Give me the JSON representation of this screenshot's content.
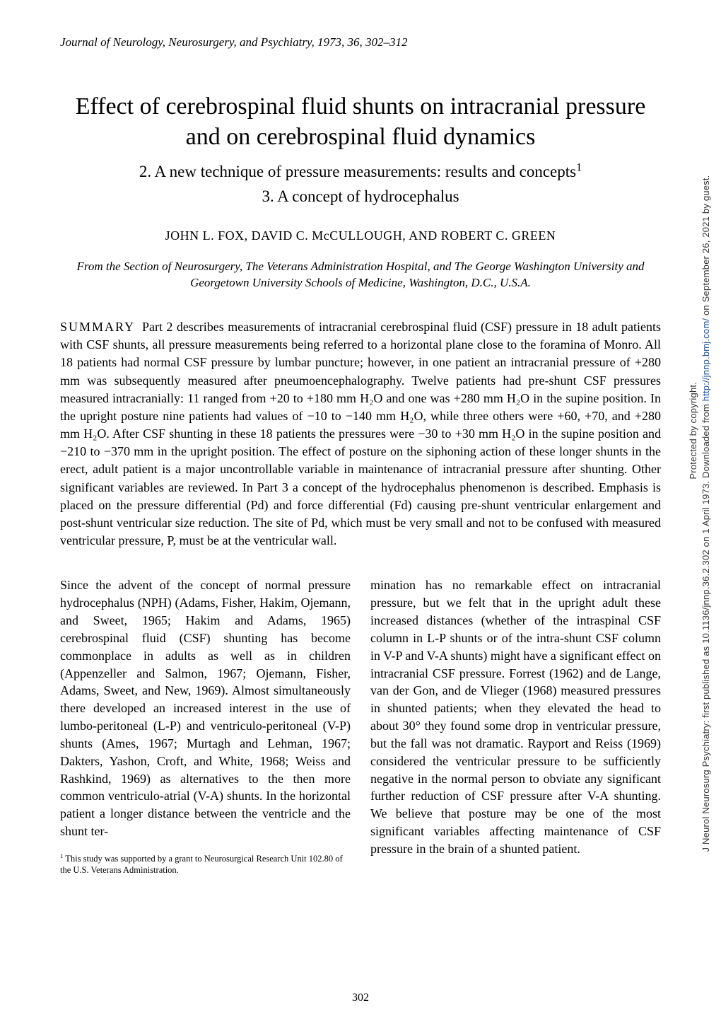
{
  "header": {
    "journal_citation": "Journal of Neurology, Neurosurgery, and Psychiatry, 1973, 36, 302–312"
  },
  "title": {
    "main": "Effect of cerebrospinal fluid shunts on intracranial pressure and on cerebrospinal fluid dynamics",
    "sub_line1_pre": "2. A new technique of pressure measurements: results and concepts",
    "sub_line1_sup": "1",
    "sub_line2": "3. A concept of hydrocephalus"
  },
  "authors": "JOHN L. FOX, DAVID C. McCULLOUGH, AND ROBERT C. GREEN",
  "affiliation": "From the Section of Neurosurgery, The Veterans Administration Hospital, and The George Washington University and Georgetown University Schools of Medicine, Washington, D.C., U.S.A.",
  "summary": {
    "label": "SUMMARY",
    "text": "Part 2 describes measurements of intracranial cerebrospinal fluid (CSF) pressure in 18 adult patients with CSF shunts, all pressure measurements being referred to a horizontal plane close to the foramina of Monro. All 18 patients had normal CSF pressure by lumbar puncture; however, in one patient an intracranial pressure of +280 mm was subsequently measured after pneumoencephalography. Twelve patients had pre-shunt CSF pressures measured intracranially: 11 ranged from +20 to +180 mm H₂O and one was +280 mm H₂O in the supine position. In the upright posture nine patients had values of −10 to −140 mm H₂O, while three others were +60, +70, and +280 mm H₂O. After CSF shunting in these 18 patients the pressures were −30 to +30 mm H₂O in the supine position and −210 to −370 mm in the upright position. The effect of posture on the siphoning action of these longer shunts in the erect, adult patient is a major uncontrollable variable in maintenance of intracranial pressure after shunting. Other significant variables are reviewed. In Part 3 a concept of the hydrocephalus phenomenon is described. Emphasis is placed on the pressure differential (Pd) and force differential (Fd) causing pre-shunt ventricular enlargement and post-shunt ventricular size reduction. The site of Pd, which must be very small and not to be confused with measured ventricular pressure, P, must be at the ventricular wall."
  },
  "body": {
    "col1": "Since the advent of the concept of normal pressure hydrocephalus (NPH) (Adams, Fisher, Hakim, Ojemann, and Sweet, 1965; Hakim and Adams, 1965) cerebrospinal fluid (CSF) shunting has become commonplace in adults as well as in children (Appenzeller and Salmon, 1967; Ojemann, Fisher, Adams, Sweet, and New, 1969). Almost simultaneously there developed an increased interest in the use of lumbo-peritoneal (L-P) and ventriculo-peritoneal (V-P) shunts (Ames, 1967; Murtagh and Lehman, 1967; Dakters, Yashon, Croft, and White, 1968; Weiss and Rashkind, 1969) as alternatives to the then more common ventriculo-atrial (V-A) shunts. In the horizontal patient a longer distance between the ventricle and the shunt ter-",
    "col2": "mination has no remarkable effect on intracranial pressure, but we felt that in the upright adult these increased distances (whether of the intraspinal CSF column in L-P shunts or of the intra-shunt CSF column in V-P and V-A shunts) might have a significant effect on intracranial CSF pressure. Forrest (1962) and de Lange, van der Gon, and de Vlieger (1968) measured pressures in shunted patients; when they elevated the head to about 30° they found some drop in ventricular pressure, but the fall was not dramatic. Rayport and Reiss (1969) considered the ventricular pressure to be sufficiently negative in the normal person to obviate any significant further reduction of CSF pressure after V-A shunting. We believe that posture may be one of the most significant variables affecting maintenance of CSF pressure in the brain of a shunted patient."
  },
  "footnote": {
    "marker": "1",
    "text": " This study was supported by a grant to Neurosurgical Research Unit 102.80 of the U.S. Veterans Administration."
  },
  "page_number": "302",
  "sidebar": {
    "line1_pre": "J Neurol Neurosurg Psychiatry: first published as 10.1136/jnnp.36.2.302 on 1 April 1973. Downloaded from ",
    "line1_link": "http://jnnp.bmj.com/",
    "line1_post": " on September 26, 2021 by guest.",
    "line2": "Protected by copyright."
  }
}
